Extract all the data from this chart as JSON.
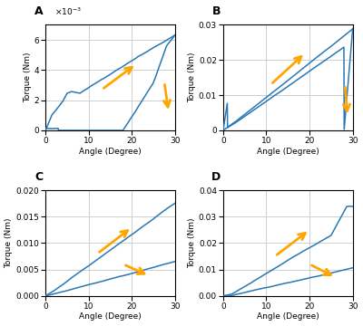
{
  "title_A": "A",
  "title_B": "B",
  "title_C": "C",
  "title_D": "D",
  "xlabel": "Angle (Degree)",
  "ylabel": "Torque (Nm)",
  "xmin": 0,
  "xmax": 30,
  "ylim_A": [
    0,
    0.007
  ],
  "ylim_B": [
    0,
    0.03
  ],
  "ylim_C": [
    0,
    0.02
  ],
  "ylim_D": [
    0,
    0.04
  ],
  "yticks_A": [
    0,
    0.002,
    0.004,
    0.006
  ],
  "yticks_B": [
    0,
    0.01,
    0.02,
    0.03
  ],
  "yticks_C": [
    0,
    0.005,
    0.01,
    0.015,
    0.02
  ],
  "yticks_D": [
    0,
    0.01,
    0.02,
    0.03,
    0.04
  ],
  "line_color": "#2878b5",
  "arrow_color": "#FFA500",
  "background_color": "#ffffff",
  "grid_color": "#c8c8c8"
}
